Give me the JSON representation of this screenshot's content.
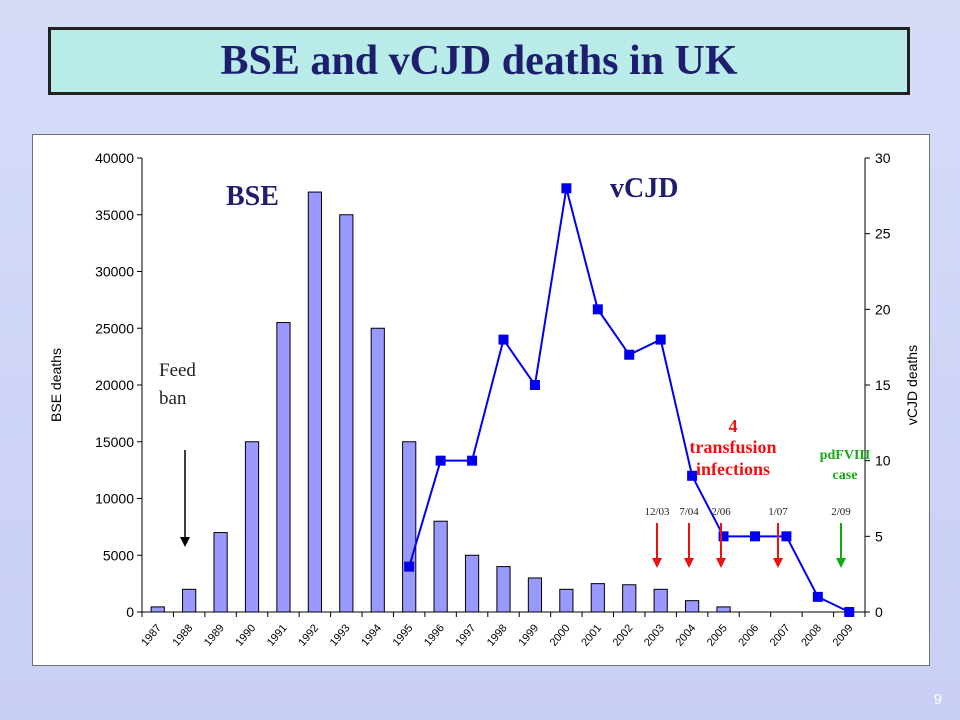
{
  "slide": {
    "title": "BSE and vCJD deaths in UK",
    "number": "9"
  },
  "chart_data": {
    "type": "bar+line",
    "categories": [
      "1987",
      "1988",
      "1989",
      "1990",
      "1991",
      "1992",
      "1993",
      "1994",
      "1995",
      "1996",
      "1997",
      "1998",
      "1999",
      "2000",
      "2001",
      "2002",
      "2003",
      "2004",
      "2005",
      "2006",
      "2007",
      "2008",
      "2009"
    ],
    "bse": {
      "name": "BSE",
      "axis": "left",
      "color": "#9999ff",
      "values": [
        450,
        2000,
        7000,
        15000,
        25500,
        37000,
        35000,
        25000,
        15000,
        8000,
        5000,
        4000,
        3000,
        2000,
        2500,
        2400,
        2000,
        1000,
        450,
        0,
        0,
        0,
        0
      ]
    },
    "vcjd": {
      "name": "vCJD",
      "axis": "right",
      "color": "#0000ee",
      "x": [
        "1995",
        "1996",
        "1997",
        "1998",
        "1999",
        "2000",
        "2001",
        "2002",
        "2003",
        "2004",
        "2005",
        "2006",
        "2007",
        "2008",
        "2009"
      ],
      "values": [
        3,
        10,
        10,
        18,
        15,
        28,
        20,
        17,
        18,
        9,
        5,
        5,
        5,
        1,
        0
      ]
    },
    "left_axis": {
      "label": "BSE deaths",
      "min": 0,
      "max": 40000,
      "ticks": [
        "0",
        "5000",
        "10000",
        "15000",
        "20000",
        "25000",
        "30000",
        "35000",
        "40000"
      ]
    },
    "right_axis": {
      "label": "vCJD deaths",
      "min": 0,
      "max": 30,
      "ticks": [
        "0",
        "5",
        "10",
        "15",
        "20",
        "25",
        "30"
      ]
    },
    "annotations": {
      "bse_label": "BSE",
      "vcjd_label": "vCJD",
      "feed_ban_line1": "Feed",
      "feed_ban_line2": "ban",
      "transfusion_line1": "4",
      "transfusion_line2": "transfusion",
      "transfusion_line3": "infections",
      "pdfviii_line1": "pdFVIII",
      "pdfviii_line2": "case",
      "dates": [
        "12/03",
        "7/04",
        "2/06",
        "1/07",
        "2/09"
      ],
      "red_color": "#ee1111",
      "green_color": "#11aa11"
    }
  }
}
